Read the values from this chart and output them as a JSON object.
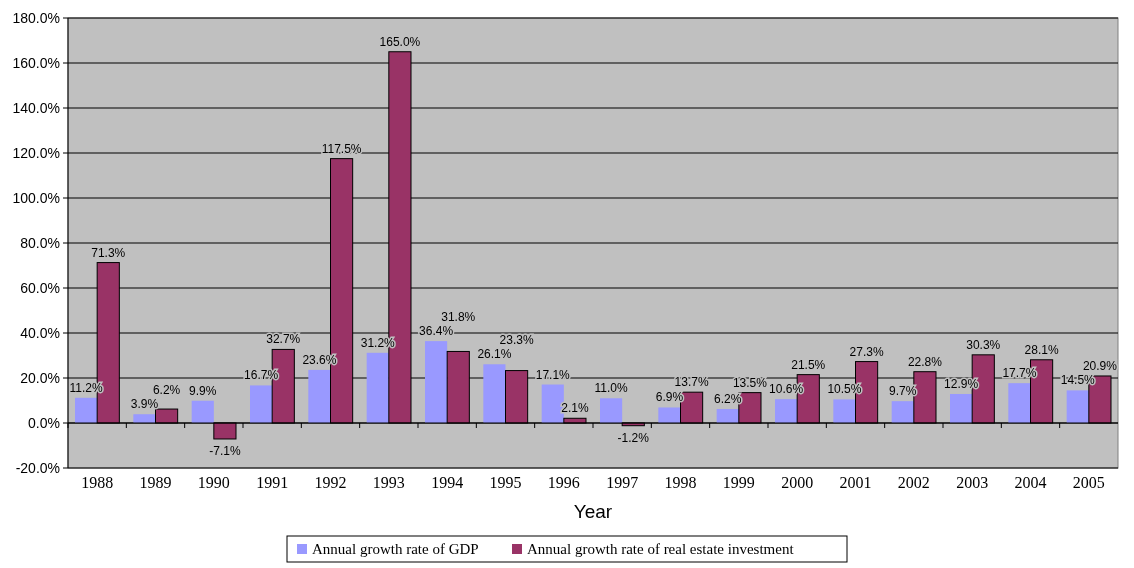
{
  "chart_data": {
    "type": "bar",
    "xlabel": "Year",
    "categories": [
      "1988",
      "1989",
      "1990",
      "1991",
      "1992",
      "1993",
      "1994",
      "1995",
      "1996",
      "1997",
      "1998",
      "1999",
      "2000",
      "2001",
      "2002",
      "2003",
      "2004",
      "2005"
    ],
    "series": [
      {
        "name": "Annual growth rate of GDP",
        "color": "#9999ff",
        "values": [
          11.2,
          3.9,
          9.9,
          16.7,
          23.6,
          31.2,
          36.4,
          26.1,
          17.1,
          11.0,
          6.9,
          6.2,
          10.6,
          10.5,
          9.7,
          12.9,
          17.7,
          14.5
        ],
        "value_labels": [
          "11.2%",
          "3.9%",
          "9.9%",
          "16.7%",
          "23.6%",
          "31.2%",
          "36.4%",
          "26.1%",
          "17.1%",
          "11.0%",
          "6.9%",
          "6.2%",
          "10.6%",
          "10.5%",
          "9.7%",
          "12.9%",
          "17.7%",
          "14.5%"
        ]
      },
      {
        "name": "Annual growth rate of real estate investment",
        "color": "#993366",
        "values": [
          71.3,
          6.2,
          -7.1,
          32.7,
          117.5,
          165.0,
          31.8,
          23.3,
          2.1,
          -1.2,
          13.7,
          13.5,
          21.5,
          27.3,
          22.8,
          30.3,
          28.1,
          20.9
        ],
        "value_labels": [
          "71.3%",
          "6.2%",
          "-7.1%",
          "32.7%",
          "117.5%",
          "165.0%",
          "31.8%",
          "23.3%",
          "2.1%",
          "-1.2%",
          "13.7%",
          "13.5%",
          "21.5%",
          "27.3%",
          "22.8%",
          "30.3%",
          "28.1%",
          "20.9%"
        ]
      }
    ],
    "ylim": [
      -20,
      180
    ],
    "yticks": [
      {
        "value": -20,
        "label": "-20.0%"
      },
      {
        "value": 0,
        "label": "0.0%"
      },
      {
        "value": 20,
        "label": "20.0%"
      },
      {
        "value": 40,
        "label": "40.0%"
      },
      {
        "value": 60,
        "label": "60.0%"
      },
      {
        "value": 80,
        "label": "80.0%"
      },
      {
        "value": 100,
        "label": "100.0%"
      },
      {
        "value": 120,
        "label": "120.0%"
      },
      {
        "value": 140,
        "label": "140.0%"
      },
      {
        "value": 160,
        "label": "160.0%"
      },
      {
        "value": 180,
        "label": "180.0%"
      }
    ],
    "grid": "y",
    "legend": "bottom"
  }
}
